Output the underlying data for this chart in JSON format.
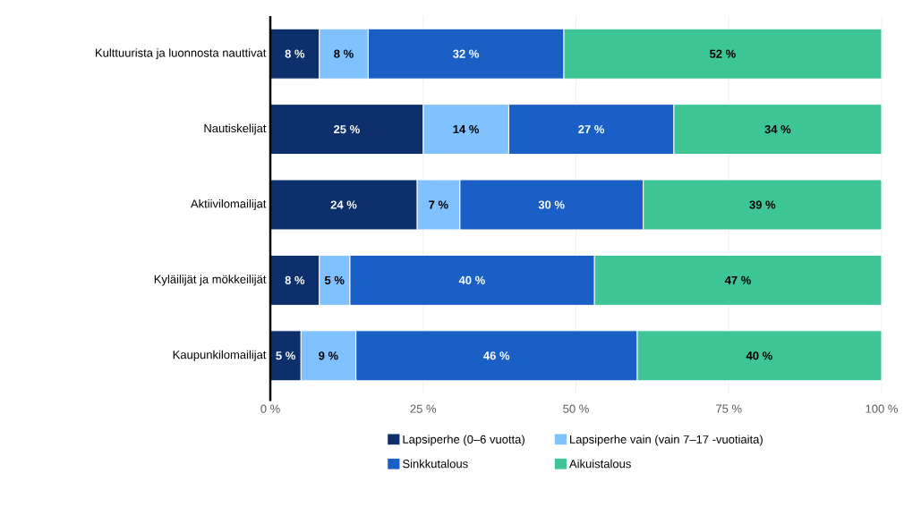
{
  "chart_data": {
    "type": "bar",
    "orientation": "horizontal",
    "stacked": true,
    "categories": [
      "Kulttuurista ja luonnosta nauttivat",
      "Nautiskelijat",
      "Aktiivilomailijat",
      "Kyläilijät ja mökkeilijät",
      "Kaupunkilomailijat"
    ],
    "series": [
      {
        "name": "Lapsiperhe (0–6 vuotta)",
        "color": "#0d2f6b",
        "values": [
          8,
          25,
          24,
          8,
          5
        ],
        "value_labels": [
          "8 %",
          "25 %",
          "24 %",
          "8 %",
          "5 %"
        ]
      },
      {
        "name": "Lapsiperhe vain (vain 7–17 -vuotiaita)",
        "color": "#80c1ff",
        "values": [
          8,
          14,
          7,
          5,
          9
        ],
        "value_labels": [
          "8 %",
          "14 %",
          "7 %",
          "5 %",
          "9 %"
        ]
      },
      {
        "name": "Sinkkutalous",
        "color": "#1a5fc6",
        "values": [
          32,
          27,
          30,
          40,
          46
        ],
        "value_labels": [
          "32 %",
          "27 %",
          "30 %",
          "40 %",
          "46 %"
        ]
      },
      {
        "name": "Aikuistalous",
        "color": "#3ec596",
        "values": [
          52,
          34,
          39,
          47,
          40
        ],
        "value_labels": [
          "52 %",
          "34 %",
          "39 %",
          "47 %",
          "40 %"
        ]
      }
    ],
    "xlim": [
      0,
      100
    ],
    "xticks": [
      {
        "value": 0,
        "label": "0 %"
      },
      {
        "value": 25,
        "label": "25 %"
      },
      {
        "value": 50,
        "label": "50 %"
      },
      {
        "value": 75,
        "label": "75 %"
      },
      {
        "value": 100,
        "label": "100 %"
      }
    ],
    "grid": "x",
    "legend": "bottom"
  }
}
